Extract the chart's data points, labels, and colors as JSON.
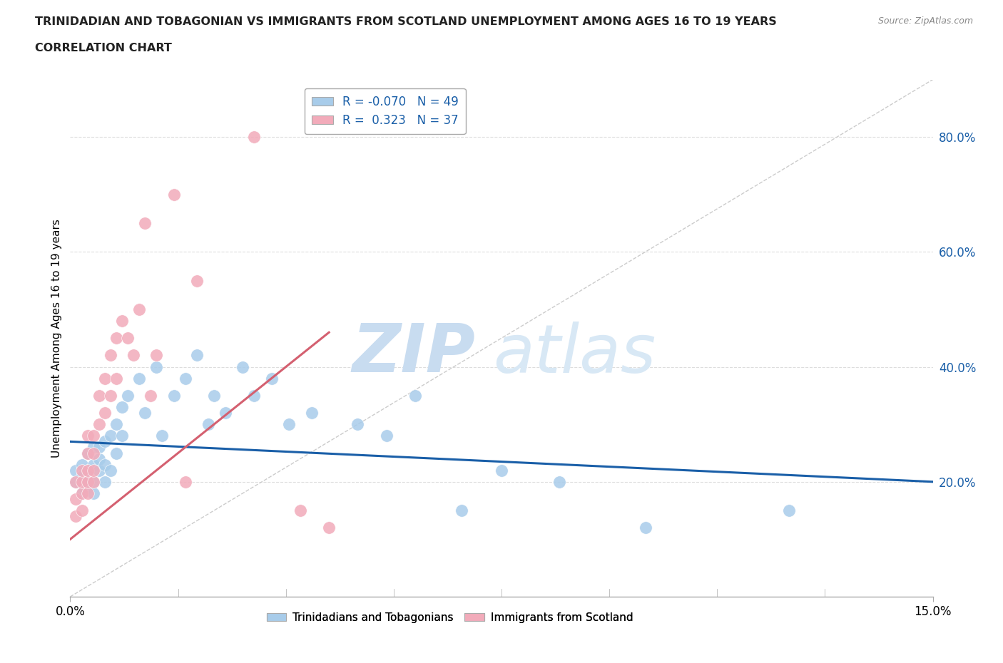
{
  "title_line1": "TRINIDADIAN AND TOBAGONIAN VS IMMIGRANTS FROM SCOTLAND UNEMPLOYMENT AMONG AGES 16 TO 19 YEARS",
  "title_line2": "CORRELATION CHART",
  "source_text": "Source: ZipAtlas.com",
  "ylabel": "Unemployment Among Ages 16 to 19 years",
  "xlim": [
    0.0,
    0.15
  ],
  "ylim": [
    0.0,
    0.9
  ],
  "x_ticks": [
    0.0,
    0.15
  ],
  "x_tick_labels": [
    "0.0%",
    "15.0%"
  ],
  "y_ticks": [
    0.2,
    0.4,
    0.6,
    0.8
  ],
  "y_tick_labels": [
    "20.0%",
    "40.0%",
    "60.0%",
    "80.0%"
  ],
  "blue_R": -0.07,
  "blue_N": 49,
  "pink_R": 0.323,
  "pink_N": 37,
  "blue_color": "#A8CCEA",
  "pink_color": "#F2ABBA",
  "blue_line_color": "#1A5FA8",
  "pink_line_color": "#D46070",
  "diagonal_color": "#CCCCCC",
  "watermark_zip": "ZIP",
  "watermark_atlas": "atlas",
  "legend_label_blue": "Trinidadians and Tobagonians",
  "legend_label_pink": "Immigrants from Scotland",
  "blue_line_x0": 0.0,
  "blue_line_y0": 0.27,
  "blue_line_x1": 0.15,
  "blue_line_y1": 0.2,
  "pink_line_x0": 0.0,
  "pink_line_y0": 0.1,
  "pink_line_x1": 0.045,
  "pink_line_y1": 0.46,
  "blue_x": [
    0.001,
    0.001,
    0.002,
    0.002,
    0.002,
    0.003,
    0.003,
    0.003,
    0.003,
    0.004,
    0.004,
    0.004,
    0.004,
    0.005,
    0.005,
    0.005,
    0.006,
    0.006,
    0.006,
    0.007,
    0.007,
    0.008,
    0.008,
    0.009,
    0.009,
    0.01,
    0.012,
    0.013,
    0.015,
    0.016,
    0.018,
    0.02,
    0.022,
    0.024,
    0.025,
    0.027,
    0.03,
    0.032,
    0.035,
    0.038,
    0.042,
    0.05,
    0.055,
    0.06,
    0.068,
    0.075,
    0.085,
    0.1,
    0.125
  ],
  "blue_y": [
    0.2,
    0.22,
    0.18,
    0.21,
    0.23,
    0.19,
    0.2,
    0.22,
    0.25,
    0.2,
    0.23,
    0.26,
    0.18,
    0.22,
    0.24,
    0.26,
    0.2,
    0.23,
    0.27,
    0.28,
    0.22,
    0.3,
    0.25,
    0.33,
    0.28,
    0.35,
    0.38,
    0.32,
    0.4,
    0.28,
    0.35,
    0.38,
    0.42,
    0.3,
    0.35,
    0.32,
    0.4,
    0.35,
    0.38,
    0.3,
    0.32,
    0.3,
    0.28,
    0.35,
    0.15,
    0.22,
    0.2,
    0.12,
    0.15
  ],
  "pink_x": [
    0.001,
    0.001,
    0.001,
    0.002,
    0.002,
    0.002,
    0.002,
    0.003,
    0.003,
    0.003,
    0.003,
    0.003,
    0.004,
    0.004,
    0.004,
    0.004,
    0.005,
    0.005,
    0.006,
    0.006,
    0.007,
    0.007,
    0.008,
    0.008,
    0.009,
    0.01,
    0.011,
    0.012,
    0.013,
    0.014,
    0.015,
    0.018,
    0.02,
    0.022,
    0.032,
    0.04,
    0.045
  ],
  "pink_y": [
    0.14,
    0.17,
    0.2,
    0.15,
    0.18,
    0.2,
    0.22,
    0.18,
    0.2,
    0.22,
    0.25,
    0.28,
    0.2,
    0.22,
    0.25,
    0.28,
    0.3,
    0.35,
    0.32,
    0.38,
    0.35,
    0.42,
    0.38,
    0.45,
    0.48,
    0.45,
    0.42,
    0.5,
    0.65,
    0.35,
    0.42,
    0.7,
    0.2,
    0.55,
    0.8,
    0.15,
    0.12
  ]
}
